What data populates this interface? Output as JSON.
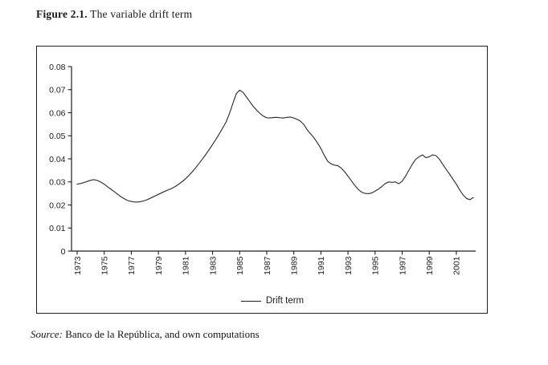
{
  "figure_caption": {
    "label": "Figure 2.1.",
    "title": " The variable drift term"
  },
  "chart_data": {
    "type": "line",
    "title": "Figure 2.1. The variable drift term",
    "xlabel": "",
    "ylabel": "",
    "xlim": [
      1973,
      2002.25
    ],
    "ylim": [
      0,
      0.08
    ],
    "grid": false,
    "axis_color": "#1f1f1f",
    "line_color": "#2f2f2f",
    "x_ticks": [
      1973,
      1975,
      1977,
      1979,
      1981,
      1983,
      1985,
      1987,
      1989,
      1991,
      1993,
      1995,
      1997,
      1999,
      2001
    ],
    "y_ticks": [
      0,
      0.01,
      0.02,
      0.03,
      0.04,
      0.05,
      0.06,
      0.07,
      0.08
    ],
    "y_tick_labels": [
      "0",
      "0.01",
      "0.02",
      "0.03",
      "0.04",
      "0.05",
      "0.06",
      "0.07",
      "0.08"
    ],
    "legend": {
      "position": "bottom-center",
      "entries": [
        "Drift term"
      ]
    },
    "series": [
      {
        "name": "Drift term",
        "x_start": 1973,
        "x_step": 0.25,
        "values": [
          0.029,
          0.0293,
          0.0297,
          0.0302,
          0.0307,
          0.031,
          0.0306,
          0.0299,
          0.029,
          0.0279,
          0.0268,
          0.0257,
          0.0246,
          0.0235,
          0.0226,
          0.0219,
          0.0215,
          0.0213,
          0.0213,
          0.0215,
          0.0219,
          0.0225,
          0.0232,
          0.0239,
          0.0246,
          0.0253,
          0.026,
          0.0266,
          0.0272,
          0.028,
          0.029,
          0.0301,
          0.0313,
          0.0328,
          0.0344,
          0.0361,
          0.038,
          0.0399,
          0.0419,
          0.044,
          0.0462,
          0.0485,
          0.0509,
          0.0534,
          0.056,
          0.0597,
          0.064,
          0.0682,
          0.0698,
          0.0688,
          0.0668,
          0.0648,
          0.0628,
          0.0611,
          0.0597,
          0.0585,
          0.0578,
          0.0577,
          0.0579,
          0.058,
          0.0578,
          0.0577,
          0.058,
          0.0581,
          0.0577,
          0.0571,
          0.0563,
          0.0548,
          0.0525,
          0.0508,
          0.049,
          0.0468,
          0.0445,
          0.0415,
          0.039,
          0.0378,
          0.0373,
          0.037,
          0.036,
          0.0344,
          0.0325,
          0.0305,
          0.0285,
          0.0268,
          0.0256,
          0.025,
          0.0249,
          0.0252,
          0.026,
          0.0269,
          0.028,
          0.0293,
          0.03,
          0.0298,
          0.03,
          0.0292,
          0.0303,
          0.0325,
          0.0351,
          0.0377,
          0.0398,
          0.0409,
          0.0417,
          0.0405,
          0.0409,
          0.0417,
          0.0414,
          0.0398,
          0.0376,
          0.0354,
          0.0334,
          0.0312,
          0.029,
          0.0265,
          0.0243,
          0.0228,
          0.0223,
          0.0232
        ]
      }
    ]
  },
  "source_note": {
    "prefix": "Source:",
    "text": " Banco de la República, and own computations"
  }
}
